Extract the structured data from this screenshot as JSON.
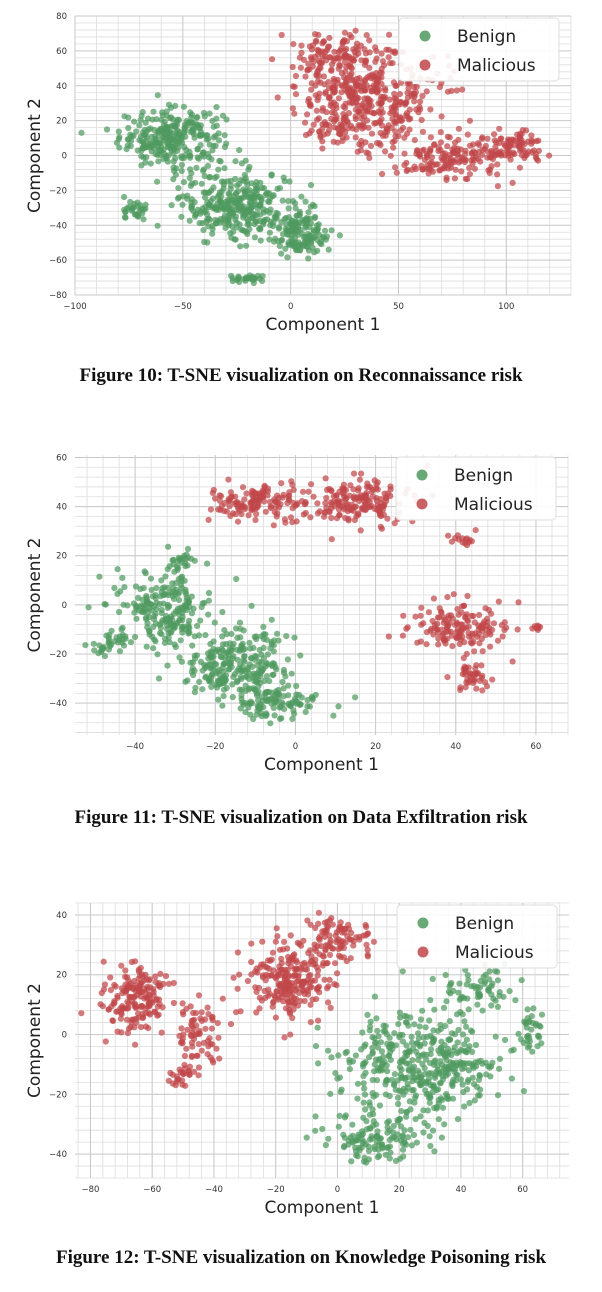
{
  "chart_data": [
    {
      "type": "scatter",
      "caption": "Figure 10: T-SNE visualization on Reconnaissance risk",
      "xlabel": "Component 1",
      "ylabel": "Component 2",
      "xlim": [
        -100,
        130
      ],
      "ylim": [
        -80,
        80
      ],
      "xticks": [
        -100,
        -50,
        0,
        50,
        100
      ],
      "xtick_labels": [
        "−100",
        "−50",
        "0",
        "50",
        "100"
      ],
      "yticks": [
        -80,
        -60,
        -40,
        -20,
        0,
        20,
        40,
        60,
        80
      ],
      "ytick_labels": [
        "−80",
        "−60",
        "−40",
        "−20",
        "0",
        "20",
        "40",
        "60",
        "80"
      ],
      "grid": true,
      "legend_position": "top-right",
      "series": [
        {
          "name": "Benign",
          "color": "#4f9a5f",
          "clusters": [
            {
              "cx": -55,
              "cy": 10,
              "sx": 16,
              "sy": 11,
              "n": 280
            },
            {
              "cx": -25,
              "cy": -28,
              "sx": 17,
              "sy": 13,
              "n": 320
            },
            {
              "cx": 5,
              "cy": -45,
              "sx": 9,
              "sy": 9,
              "n": 140
            },
            {
              "cx": -72,
              "cy": -32,
              "sx": 4,
              "sy": 5,
              "n": 30
            },
            {
              "cx": -20,
              "cy": -71,
              "sx": 6,
              "sy": 1.6,
              "n": 28
            }
          ]
        },
        {
          "name": "Malicious",
          "color": "#c1474a",
          "clusters": [
            {
              "cx": 35,
              "cy": 30,
              "sx": 22,
              "sy": 18,
              "n": 420
            },
            {
              "cx": 20,
              "cy": 58,
              "sx": 14,
              "sy": 9,
              "n": 110
            },
            {
              "cx": 75,
              "cy": -2,
              "sx": 17,
              "sy": 8,
              "n": 150
            },
            {
              "cx": 105,
              "cy": 5,
              "sx": 9,
              "sy": 6,
              "n": 80
            }
          ]
        }
      ]
    },
    {
      "type": "scatter",
      "caption": "Figure 11: T-SNE visualization on Data Exfiltration risk",
      "xlabel": "Component 1",
      "ylabel": "Component 2",
      "xlim": [
        -55,
        68
      ],
      "ylim": [
        -53,
        61
      ],
      "xticks": [
        -40,
        -20,
        0,
        20,
        40,
        60
      ],
      "xtick_labels": [
        "−40",
        "−20",
        "0",
        "20",
        "40",
        "60"
      ],
      "yticks": [
        -40,
        -20,
        0,
        20,
        40,
        60
      ],
      "ytick_labels": [
        "−40",
        "−20",
        "0",
        "20",
        "40",
        "60"
      ],
      "grid": true,
      "legend_position": "top-right",
      "series": [
        {
          "name": "Benign",
          "color": "#4f9a5f",
          "clusters": [
            {
              "cx": -33,
              "cy": -2,
              "sx": 8,
              "sy": 10,
              "n": 220
            },
            {
              "cx": -15,
              "cy": -25,
              "sx": 9,
              "sy": 10,
              "n": 260
            },
            {
              "cx": -5,
              "cy": -40,
              "sx": 7,
              "sy": 5,
              "n": 100
            },
            {
              "cx": -47,
              "cy": -17,
              "sx": 3,
              "sy": 3,
              "n": 25
            },
            {
              "cx": -29,
              "cy": 18,
              "sx": 2.5,
              "sy": 3,
              "n": 25
            }
          ]
        },
        {
          "name": "Malicious",
          "color": "#c1474a",
          "clusters": [
            {
              "cx": -10,
              "cy": 42,
              "sx": 8,
              "sy": 5,
              "n": 130
            },
            {
              "cx": 15,
              "cy": 42,
              "sx": 9,
              "sy": 6,
              "n": 170
            },
            {
              "cx": 40,
              "cy": -10,
              "sx": 8,
              "sy": 7,
              "n": 150
            },
            {
              "cx": 44,
              "cy": -30,
              "sx": 3,
              "sy": 4,
              "n": 40
            },
            {
              "cx": 41,
              "cy": 26,
              "sx": 3,
              "sy": 2,
              "n": 15
            },
            {
              "cx": 60,
              "cy": -9,
              "sx": 1.5,
              "sy": 1,
              "n": 8
            }
          ]
        }
      ]
    },
    {
      "type": "scatter",
      "caption": "Figure 12: T-SNE visualization on Knowledge Poisoning risk",
      "xlabel": "Component 1",
      "ylabel": "Component 2",
      "xlim": [
        -85,
        75
      ],
      "ylim": [
        -48,
        44
      ],
      "xticks": [
        -80,
        -60,
        -40,
        -20,
        0,
        20,
        40,
        60
      ],
      "xtick_labels": [
        "−80",
        "−60",
        "−40",
        "−20",
        "0",
        "20",
        "40",
        "60"
      ],
      "yticks": [
        -40,
        -20,
        0,
        20,
        40
      ],
      "ytick_labels": [
        "−40",
        "−20",
        "0",
        "20",
        "40"
      ],
      "grid": true,
      "legend_position": "top-right",
      "series": [
        {
          "name": "Benign",
          "color": "#4f9a5f",
          "clusters": [
            {
              "cx": 28,
              "cy": -10,
              "sx": 17,
              "sy": 12,
              "n": 420
            },
            {
              "cx": 12,
              "cy": -35,
              "sx": 10,
              "sy": 5,
              "n": 120
            },
            {
              "cx": 62,
              "cy": 2,
              "sx": 3,
              "sy": 5,
              "n": 35
            },
            {
              "cx": 45,
              "cy": 15,
              "sx": 8,
              "sy": 5,
              "n": 60
            }
          ]
        },
        {
          "name": "Malicious",
          "color": "#c1474a",
          "clusters": [
            {
              "cx": -65,
              "cy": 12,
              "sx": 7,
              "sy": 7,
              "n": 170
            },
            {
              "cx": -45,
              "cy": 0,
              "sx": 5,
              "sy": 7,
              "n": 70
            },
            {
              "cx": -50,
              "cy": -13,
              "sx": 3,
              "sy": 3,
              "n": 25
            },
            {
              "cx": -15,
              "cy": 18,
              "sx": 9,
              "sy": 9,
              "n": 230
            },
            {
              "cx": 0,
              "cy": 32,
              "sx": 8,
              "sy": 5,
              "n": 90
            }
          ]
        }
      ]
    }
  ]
}
